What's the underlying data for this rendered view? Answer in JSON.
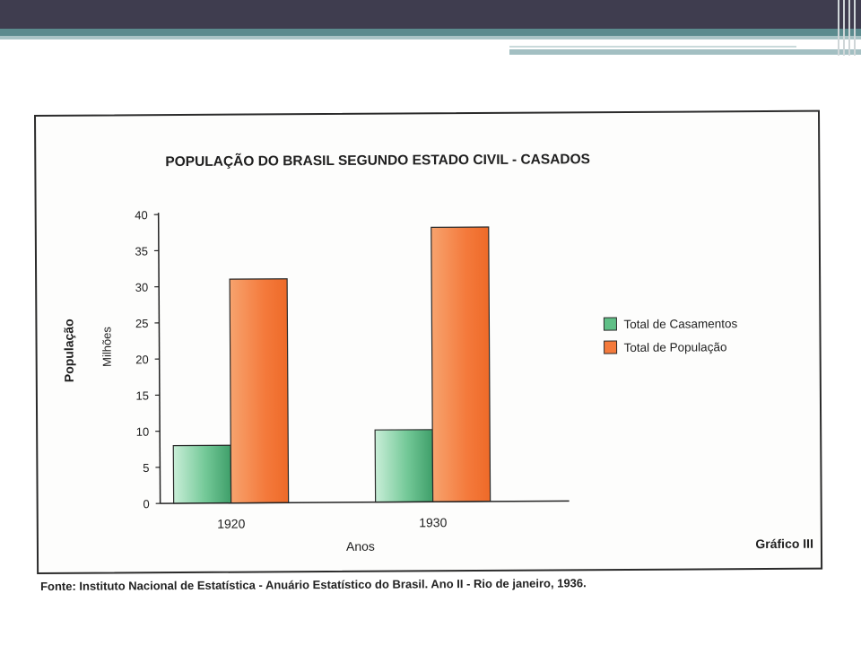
{
  "chart_data": {
    "type": "bar",
    "title": "POPULAÇÃO DO BRASIL SEGUNDO ESTADO CIVIL - CASADOS",
    "xlabel": "Anos",
    "ylabel": "População",
    "yunit": "Milhões",
    "categories": [
      "1920",
      "1930"
    ],
    "series": [
      {
        "name": "Total de Casamentos",
        "values": [
          8,
          10
        ],
        "color": "#5fbf86"
      },
      {
        "name": "Total de População",
        "values": [
          31,
          38
        ],
        "color": "#f47a3c"
      }
    ],
    "ylim": [
      0,
      40
    ],
    "yticks": [
      "0",
      "5",
      "10",
      "15",
      "20",
      "25",
      "30",
      "35",
      "40"
    ],
    "legend_position": "right",
    "grid": false,
    "figure_label": "Gráfico III"
  },
  "source_note": "Fonte: Instituto Nacional de Estatística - Anuário Estatístico do Brasil. Ano II - Rio de janeiro, 1936."
}
